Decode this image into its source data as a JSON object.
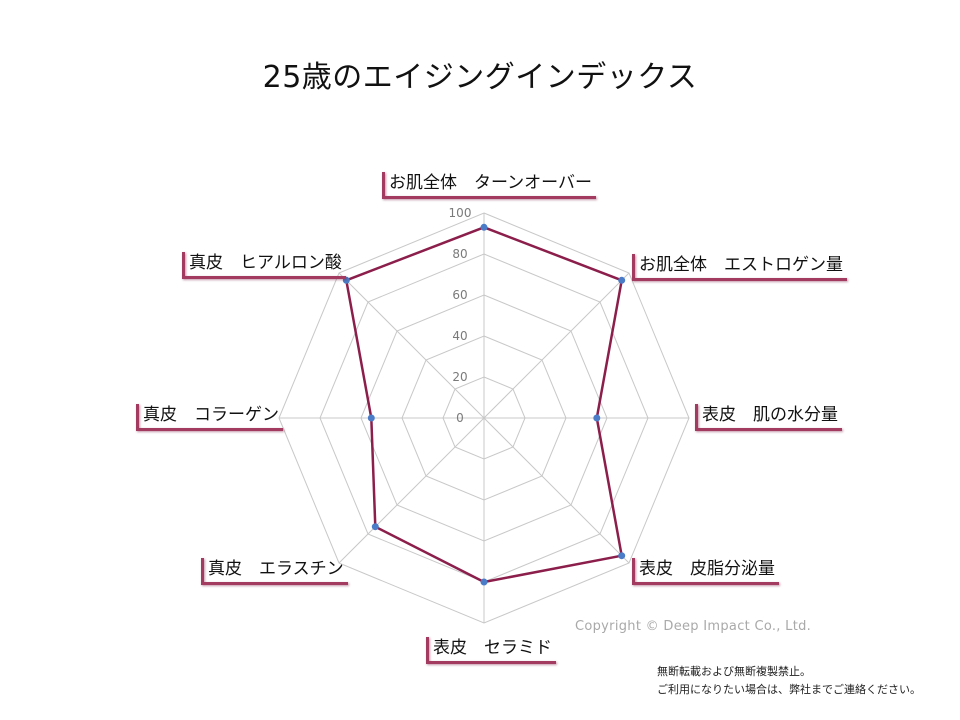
{
  "chart_data": {
    "type": "radar",
    "title": "25歳のエイジングインデックス",
    "categories": [
      "お肌全体　ターンオーバー",
      "お肌全体　エストロゲン量",
      "表皮　肌の水分量",
      "表皮　皮脂分泌量",
      "表皮　セラミド",
      "真皮　エラスチン",
      "真皮　コラーゲン",
      "真皮　ヒアルロン酸"
    ],
    "series": [
      {
        "values": [
          93,
          95,
          55,
          95,
          80,
          75,
          55,
          95
        ],
        "color": "#8b1e4a",
        "marker_color": "#4a7cc7"
      }
    ],
    "r_ticks": [
      "0",
      "20",
      "40",
      "60",
      "80",
      "100"
    ],
    "r_range": [
      0,
      100
    ],
    "grid": true,
    "grid_color": "#c8c8c8"
  },
  "footer": {
    "copyright": "Copyright © Deep Impact Co., Ltd.",
    "notice_line1": "無断転載および無断複製禁止。",
    "notice_line2": "ご利用になりたい場合は、弊社までご連絡ください。"
  }
}
